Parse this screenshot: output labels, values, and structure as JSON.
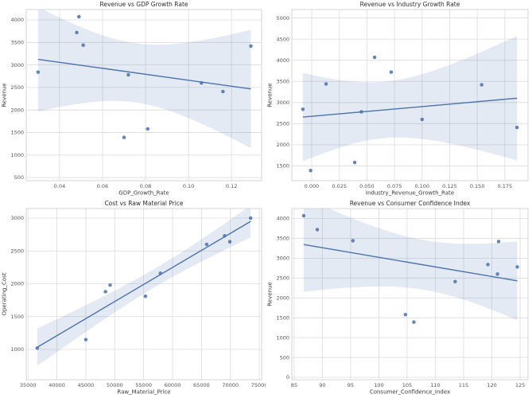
{
  "figure": {
    "rows": 2,
    "cols": 2,
    "background": "#ffffff"
  },
  "colors": {
    "point": "#4c72b0",
    "line": "#4c72b0",
    "band": "#4c72b0",
    "band_opacity": 0.15,
    "grid": "#dcdcdc",
    "spine": "#cccccc",
    "tick_text": "#555555",
    "text": "#3a3a3a",
    "title_text": "#2e2e2e"
  },
  "chart_data": [
    {
      "type": "scatter",
      "title": "Revenue vs GDP Growth Rate",
      "xlabel": "GDP_Growth_Rate",
      "ylabel": "Revenue",
      "x": [
        0.03,
        0.048,
        0.049,
        0.051,
        0.07,
        0.072,
        0.081,
        0.106,
        0.116,
        0.129
      ],
      "y": [
        2840,
        3720,
        4070,
        3440,
        1390,
        2780,
        1580,
        2600,
        2410,
        3420
      ],
      "regression_line": true,
      "confidence_band": "95%",
      "grid": true,
      "legend": "none",
      "xlim": [
        0.0245,
        0.134
      ],
      "ylim": [
        430,
        4230
      ],
      "xticks": {
        "values": [
          0.04,
          0.06,
          0.08,
          0.1,
          0.12
        ],
        "labels": [
          "0.04",
          "0.06",
          "0.08",
          "0.10",
          "0.12"
        ]
      },
      "yticks": {
        "values": [
          500,
          1000,
          1500,
          2000,
          2500,
          3000,
          3500,
          4000
        ],
        "labels": [
          "500",
          "1000",
          "1500",
          "2000",
          "2500",
          "3000",
          "3500",
          "4000"
        ]
      }
    },
    {
      "type": "scatter",
      "title": "Revenue vs Industry Growth Rate",
      "xlabel": "Industry_Revenue_Growth_Rate",
      "ylabel": "Revenue",
      "x": [
        -0.008,
        -0.001,
        0.013,
        0.039,
        0.045,
        0.057,
        0.072,
        0.1,
        0.154,
        0.186
      ],
      "y": [
        2840,
        1390,
        3440,
        1580,
        2780,
        4070,
        3720,
        2600,
        3420,
        2410
      ],
      "regression_line": true,
      "confidence_band": "95%",
      "grid": true,
      "legend": "none",
      "xlim": [
        -0.018,
        0.196
      ],
      "ylim": [
        1150,
        5200
      ],
      "xticks": {
        "values": [
          0.0,
          0.025,
          0.05,
          0.075,
          0.1,
          0.125,
          0.15,
          0.175
        ],
        "labels": [
          "0.000",
          "0.025",
          "0.050",
          "0.075",
          "0.100",
          "0.125",
          "0.150",
          "0.175"
        ]
      },
      "yticks": {
        "values": [
          1500,
          2000,
          2500,
          3000,
          3500,
          4000,
          4500,
          5000
        ],
        "labels": [
          "1500",
          "2000",
          "2500",
          "3000",
          "3500",
          "4000",
          "4500",
          "5000"
        ]
      }
    },
    {
      "type": "scatter",
      "title": "Cost vs Raw Material Price",
      "xlabel": "Raw_Material_Price",
      "ylabel": "Operating_Cost",
      "x": [
        36600,
        45000,
        48400,
        49200,
        55300,
        57900,
        65900,
        69000,
        69900,
        73500
      ],
      "y": [
        1020,
        1150,
        1880,
        1980,
        1810,
        2160,
        2600,
        2730,
        2640,
        3000
      ],
      "regression_line": true,
      "confidence_band": "95%",
      "grid": true,
      "legend": "none",
      "xlim": [
        34700,
        75400
      ],
      "ylim": [
        540,
        3145
      ],
      "xticks": {
        "values": [
          35000,
          40000,
          45000,
          50000,
          55000,
          60000,
          65000,
          70000,
          75000
        ],
        "labels": [
          "35000",
          "40000",
          "45000",
          "50000",
          "55000",
          "60000",
          "65000",
          "70000",
          "75000"
        ]
      },
      "yticks": {
        "values": [
          1000,
          1500,
          2000,
          2500,
          3000
        ],
        "labels": [
          "1000",
          "1500",
          "2000",
          "2500",
          "3000"
        ]
      }
    },
    {
      "type": "scatter",
      "title": "Revenue vs Consumer Confidence Index",
      "xlabel": "Consumer_Confidence_Index",
      "ylabel": "Revenue",
      "x": [
        86.7,
        89.1,
        95.4,
        104.7,
        106.2,
        113.5,
        119.3,
        121.0,
        121.2,
        124.5
      ],
      "y": [
        4070,
        3720,
        3440,
        1580,
        1390,
        2410,
        2840,
        2600,
        3420,
        2780
      ],
      "regression_line": true,
      "confidence_band": "95%",
      "grid": true,
      "legend": "none",
      "xlim": [
        84.6,
        126.4
      ],
      "ylim": [
        -60,
        4250
      ],
      "xticks": {
        "values": [
          85,
          90,
          95,
          100,
          105,
          110,
          115,
          120,
          125
        ],
        "labels": [
          "85",
          "90",
          "95",
          "100",
          "105",
          "110",
          "115",
          "120",
          "125"
        ]
      },
      "yticks": {
        "values": [
          0,
          500,
          1000,
          1500,
          2000,
          2500,
          3000,
          3500,
          4000
        ],
        "labels": [
          "0",
          "500",
          "1000",
          "1500",
          "2000",
          "2500",
          "3000",
          "3500",
          "4000"
        ]
      }
    }
  ]
}
